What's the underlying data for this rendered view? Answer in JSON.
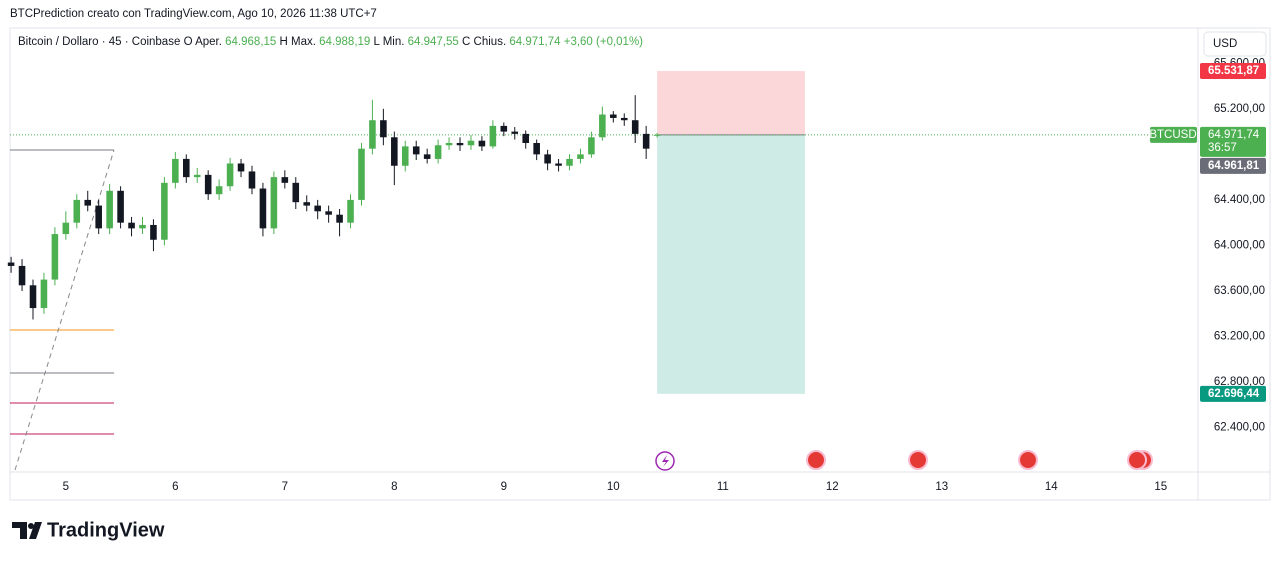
{
  "chart_data": {
    "type": "candlestick",
    "attribution": "BTCPrediction creato con TradingView.com, Ago 10, 2026 11:38 UTC+7",
    "symbol": "Bitcoin / Dollaro · 45 · Coinbase",
    "ohlc": [
      {
        "key": "O",
        "name": "Aper.",
        "value": "64.968,15"
      },
      {
        "key": "H",
        "name": "Max.",
        "value": "64.988,19"
      },
      {
        "key": "L",
        "name": "Min.",
        "value": "64.947,55"
      },
      {
        "key": "C",
        "name": "Chius.",
        "value": "64.971,74"
      }
    ],
    "change": "+3,60 (+0,01%)",
    "currency": "USD",
    "up_color": "#4caf50",
    "down_color": "#131722",
    "x": [
      4.5,
      4.6,
      4.7,
      4.8,
      4.9,
      5.0,
      5.1,
      5.2,
      5.3,
      5.4,
      5.5,
      5.6,
      5.7,
      5.8,
      5.9,
      6.0,
      6.1,
      6.2,
      6.3,
      6.4,
      6.5,
      6.6,
      6.7,
      6.8,
      6.9,
      7.0,
      7.1,
      7.2,
      7.3,
      7.4,
      7.5,
      7.6,
      7.7,
      7.8,
      7.9,
      8.0,
      8.1,
      8.2,
      8.3,
      8.4,
      8.5,
      8.6,
      8.7,
      8.8,
      8.9,
      9.0,
      9.1,
      9.2,
      9.3,
      9.4,
      9.5,
      9.6,
      9.7,
      9.8,
      9.9,
      10.0,
      10.1,
      10.2,
      10.3,
      10.4
    ],
    "open": [
      63850,
      63820,
      63650,
      63450,
      63700,
      64100,
      64200,
      64400,
      64350,
      64150,
      64480,
      64200,
      64150,
      64180,
      64050,
      64550,
      64760,
      64600,
      64620,
      64450,
      64520,
      64720,
      64650,
      64500,
      64150,
      64600,
      64550,
      64380,
      64350,
      64300,
      64270,
      64200,
      64400,
      64850,
      65100,
      64950,
      64700,
      64870,
      64800,
      64760,
      64880,
      64900,
      64880,
      64920,
      64870,
      65050,
      65000,
      64980,
      64900,
      64800,
      64720,
      64700,
      64760,
      64800,
      64950,
      65150,
      65120,
      65100,
      64980,
      64968.15
    ],
    "high": [
      63900,
      63880,
      63700,
      63760,
      64160,
      64300,
      64450,
      64480,
      64400,
      64540,
      64520,
      64250,
      64250,
      64230,
      64600,
      64820,
      64800,
      64680,
      64660,
      64580,
      64770,
      64760,
      64700,
      64550,
      64650,
      64660,
      64600,
      64440,
      64400,
      64350,
      64320,
      64450,
      64900,
      65280,
      65200,
      65000,
      64920,
      64920,
      64850,
      64930,
      64950,
      64950,
      64970,
      64960,
      65100,
      65080,
      65040,
      65010,
      64930,
      64840,
      64760,
      64800,
      64850,
      65000,
      65220,
      65180,
      65160,
      65320,
      65050,
      64988.19
    ],
    "low": [
      63760,
      63600,
      63350,
      63400,
      63650,
      64050,
      64150,
      64300,
      64100,
      64100,
      64150,
      64080,
      64100,
      63950,
      64000,
      64500,
      64550,
      64550,
      64400,
      64400,
      64480,
      64600,
      64450,
      64080,
      64100,
      64500,
      64320,
      64300,
      64230,
      64200,
      64080,
      64150,
      64350,
      64800,
      64880,
      64530,
      64650,
      64750,
      64720,
      64720,
      64840,
      64830,
      64840,
      64830,
      64850,
      64960,
      64930,
      64850,
      64750,
      64660,
      64650,
      64660,
      64720,
      64770,
      64920,
      65080,
      65050,
      64900,
      64760,
      64947.55
    ],
    "close": [
      63820,
      63650,
      63450,
      63700,
      64100,
      64200,
      64400,
      64350,
      64150,
      64480,
      64200,
      64150,
      64180,
      64050,
      64550,
      64760,
      64600,
      64620,
      64450,
      64520,
      64720,
      64650,
      64500,
      64150,
      64600,
      64550,
      64380,
      64350,
      64300,
      64270,
      64200,
      64400,
      64850,
      65100,
      64950,
      64700,
      64870,
      64800,
      64760,
      64880,
      64900,
      64880,
      64920,
      64870,
      65050,
      65000,
      64980,
      64900,
      64800,
      64720,
      64700,
      64760,
      64800,
      64950,
      65150,
      65120,
      65100,
      64980,
      64850,
      64971.74
    ],
    "xlim": [
      4.49,
      15.34
    ],
    "ylim": [
      62010,
      65910
    ],
    "xticks": [
      5,
      6,
      7,
      8,
      9,
      10,
      11,
      12,
      13,
      14,
      15
    ],
    "yticks": [
      {
        "value": 62400,
        "label": "62.400,00"
      },
      {
        "value": 62800,
        "label": "62.800,00"
      },
      {
        "value": 63200,
        "label": "63.200,00"
      },
      {
        "value": 63600,
        "label": "63.600,00"
      },
      {
        "value": 64000,
        "label": "64.000,00"
      },
      {
        "value": 64400,
        "label": "64.400,00"
      },
      {
        "value": 65200,
        "label": "65.200,00"
      },
      {
        "value": 65600,
        "label": "65.600,00"
      }
    ],
    "last_price": {
      "value": 64971.74,
      "label": "64.971,74",
      "countdown": "36:57",
      "symbol": "BTCUSD",
      "color": "#4caf50"
    },
    "stop": {
      "value": 65531.87,
      "label": "65.531,87",
      "color": "#f23645"
    },
    "target": {
      "value": 62696.44,
      "label": "62.696,44",
      "color": "#089981"
    },
    "other_price": {
      "value": 64961.81,
      "label": "64.961,81",
      "color": "#6a6d78"
    },
    "position_x": [
      10.4,
      11.75
    ]
  },
  "footer": {
    "brand": "TradingView"
  }
}
